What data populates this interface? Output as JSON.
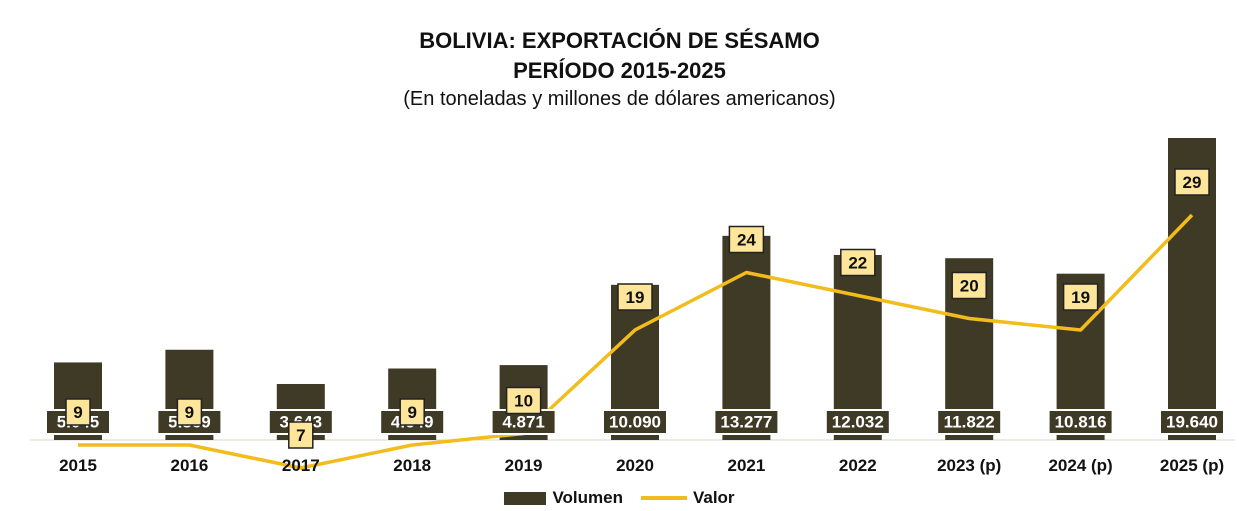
{
  "chart_data": {
    "type": "bar",
    "title": "BOLIVIA: EXPORTACIÓN DE SÉSAMO",
    "subtitle": "PERÍODO 2015-2025",
    "subtitle2": "(En toneladas y millones de dólares americanos)",
    "categories": [
      "2015",
      "2016",
      "2017",
      "2018",
      "2019",
      "2020",
      "2021",
      "2022",
      "2023 (p)",
      "2024 (p)",
      "2025 (p)"
    ],
    "series": [
      {
        "name": "Volumen",
        "type": "bar",
        "values": [
          5045,
          5869,
          3643,
          4649,
          4871,
          10090,
          13277,
          12032,
          11822,
          10816,
          19640
        ],
        "labels": [
          "5.045",
          "5.869",
          "3.643",
          "4.649",
          "4.871",
          "10.090",
          "13.277",
          "12.032",
          "11.822",
          "10.816",
          "19.640"
        ]
      },
      {
        "name": "Valor",
        "type": "line",
        "values": [
          9,
          9,
          7,
          9,
          10,
          19,
          24,
          22,
          20,
          19,
          29
        ],
        "labels": [
          "9",
          "9",
          "7",
          "9",
          "10",
          "19",
          "24",
          "22",
          "20",
          "19",
          "29"
        ]
      }
    ],
    "colors": {
      "bar": "#3f3a26",
      "line": "#f2bd1c",
      "label_fill": "#fde69a"
    },
    "legend_position": "bottom-center",
    "grid": false
  }
}
